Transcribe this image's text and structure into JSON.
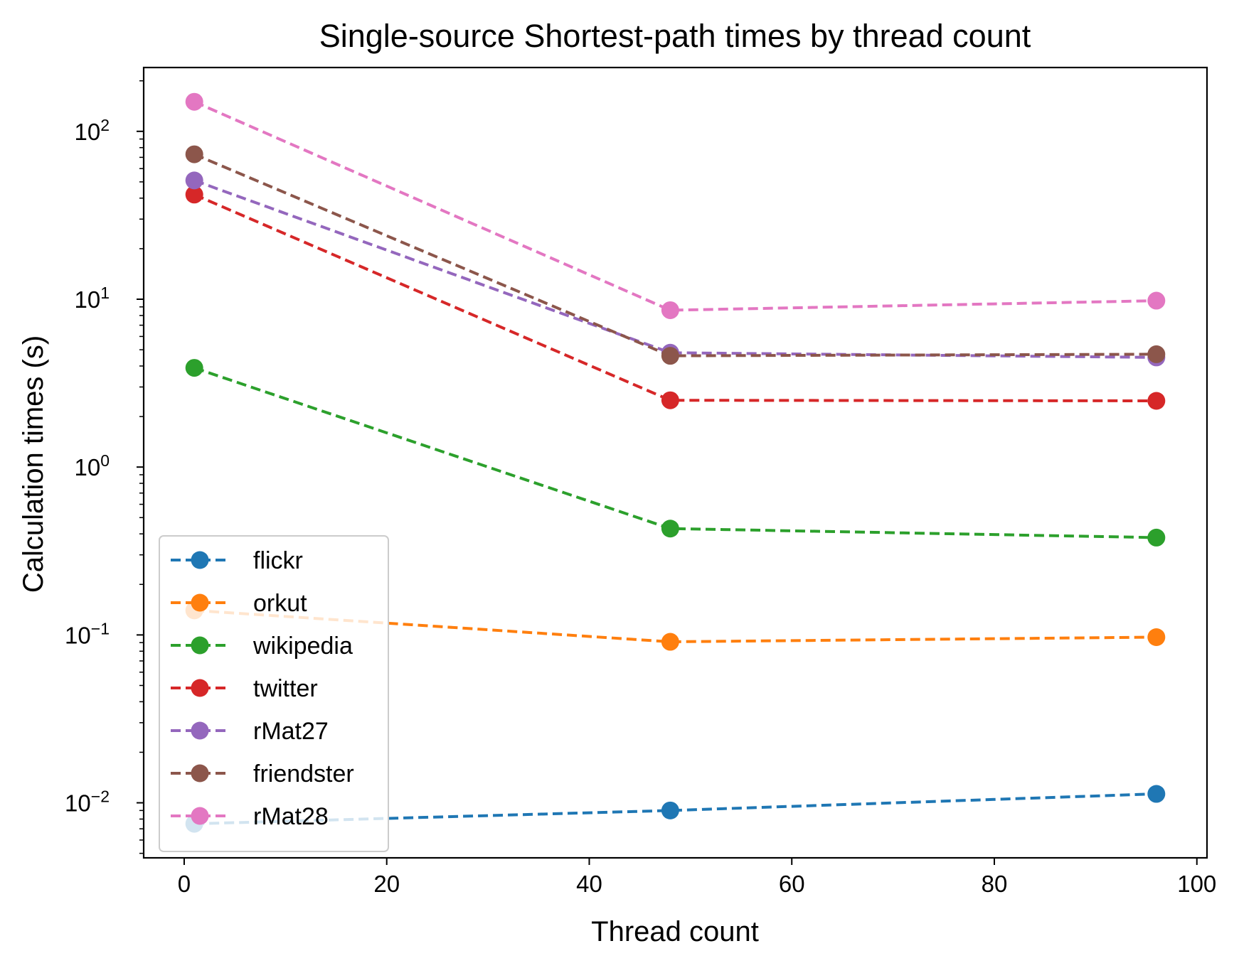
{
  "chart_data": {
    "type": "line",
    "title": "Single-source Shortest-path times by thread count",
    "xlabel": "Thread count",
    "ylabel": "Calculation times (s)",
    "yscale": "log",
    "xlim": [
      -4,
      101
    ],
    "ylim": [
      0.0047,
      240
    ],
    "x_ticks": [
      0,
      20,
      40,
      60,
      80,
      100
    ],
    "y_ticks": [
      {
        "value": 0.01,
        "base": "10",
        "exp": "−2"
      },
      {
        "value": 0.1,
        "base": "10",
        "exp": "−1"
      },
      {
        "value": 1,
        "base": "10",
        "exp": "0"
      },
      {
        "value": 10,
        "base": "10",
        "exp": "1"
      },
      {
        "value": 100,
        "base": "10",
        "exp": "2"
      }
    ],
    "grid": false,
    "legend_position": "lower-left",
    "line_style": "dashed",
    "marker": "circle",
    "x": [
      1,
      48,
      96
    ],
    "series": [
      {
        "name": "flickr",
        "color": "#1f77b4",
        "values": [
          0.0075,
          0.009,
          0.0113
        ]
      },
      {
        "name": "orkut",
        "color": "#ff7f0e",
        "values": [
          0.14,
          0.091,
          0.097
        ]
      },
      {
        "name": "wikipedia",
        "color": "#2ca02c",
        "values": [
          3.9,
          0.43,
          0.38
        ]
      },
      {
        "name": "twitter",
        "color": "#d62728",
        "values": [
          42,
          2.5,
          2.48
        ]
      },
      {
        "name": "rMat27",
        "color": "#9467bd",
        "values": [
          51,
          4.8,
          4.5
        ]
      },
      {
        "name": "friendster",
        "color": "#8c564b",
        "values": [
          73,
          4.6,
          4.7
        ]
      },
      {
        "name": "rMat28",
        "color": "#e377c2",
        "values": [
          150,
          8.6,
          9.8
        ]
      }
    ]
  }
}
